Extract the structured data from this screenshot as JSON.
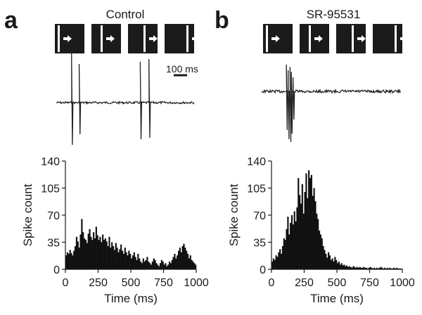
{
  "panels": [
    {
      "letter": "a",
      "title": "Control",
      "scale_bar_label": "100 ms",
      "stimulus_frames": 4,
      "stimulus_arrow": "right-arrow-icon",
      "trace": {
        "spike_times_ms": [
          70,
          105,
          385,
          425
        ],
        "spike_up_mv": [
          72,
          55,
          58,
          62
        ],
        "spike_down_mv": [
          -60,
          -45,
          -52,
          -50
        ]
      }
    },
    {
      "letter": "b",
      "title": "SR-95531",
      "stimulus_frames": 4,
      "stimulus_arrow": "right-arrow-icon",
      "trace": {
        "spike_times_ms": [
          135,
          145,
          155,
          162,
          172
        ],
        "spike_up_mv": [
          38,
          30,
          35,
          28,
          20
        ],
        "spike_down_mv": [
          -55,
          -68,
          -72,
          -60,
          -40
        ]
      }
    }
  ],
  "colors": {
    "bars": "#111111",
    "trace": "#222222",
    "axis": "#1a1a1a",
    "frame": "#1b1b1b",
    "frame_inner": "#ffffff"
  },
  "chart_data": [
    {
      "type": "bar",
      "title": "Control",
      "xlabel": "Time (ms)",
      "ylabel": "Spike count",
      "xlim": [
        0,
        1000
      ],
      "ylim": [
        0,
        140
      ],
      "xticks": [
        "0",
        "250",
        "500",
        "750",
        "1000"
      ],
      "yticks": [
        "0",
        "35",
        "70",
        "105",
        "140"
      ],
      "bin_width_ms": 10,
      "values": [
        18,
        22,
        20,
        25,
        21,
        18,
        24,
        30,
        42,
        36,
        28,
        45,
        65,
        48,
        40,
        38,
        34,
        46,
        52,
        42,
        38,
        48,
        40,
        55,
        44,
        38,
        42,
        35,
        45,
        38,
        40,
        36,
        30,
        42,
        28,
        35,
        30,
        25,
        34,
        28,
        22,
        26,
        32,
        24,
        20,
        28,
        22,
        18,
        24,
        20,
        14,
        18,
        22,
        16,
        12,
        20,
        14,
        10,
        8,
        14,
        10,
        12,
        16,
        10,
        8,
        6,
        10,
        14,
        12,
        8,
        6,
        4,
        8,
        12,
        10,
        6,
        8,
        4,
        6,
        10,
        8,
        12,
        16,
        20,
        14,
        18,
        24,
        28,
        22,
        30,
        33,
        28,
        24,
        20,
        14,
        18,
        12,
        10,
        8,
        6
      ]
    },
    {
      "type": "bar",
      "title": "SR-95531",
      "xlabel": "Time (ms)",
      "ylabel": "Spike count",
      "xlim": [
        0,
        1000
      ],
      "ylim": [
        0,
        140
      ],
      "xticks": [
        "0",
        "250",
        "500",
        "750",
        "1000"
      ],
      "yticks": [
        "0",
        "35",
        "70",
        "105",
        "140"
      ],
      "bin_width_ms": 10,
      "values": [
        10,
        14,
        12,
        18,
        16,
        22,
        26,
        20,
        30,
        40,
        38,
        52,
        68,
        45,
        60,
        70,
        58,
        75,
        62,
        80,
        118,
        96,
        85,
        110,
        72,
        100,
        124,
        92,
        128,
        118,
        122,
        95,
        105,
        88,
        72,
        65,
        50,
        45,
        40,
        30,
        25,
        20,
        15,
        22,
        18,
        12,
        14,
        10,
        16,
        12,
        8,
        10,
        6,
        8,
        5,
        6,
        4,
        5,
        3,
        4,
        3,
        2,
        4,
        3,
        2,
        3,
        2,
        3,
        2,
        2,
        3,
        2,
        2,
        1,
        2,
        3,
        2,
        1,
        2,
        1,
        2,
        1,
        2,
        3,
        2,
        1,
        2,
        1,
        2,
        1,
        2,
        1,
        1,
        2,
        1,
        2,
        1,
        1,
        1,
        1
      ]
    }
  ]
}
